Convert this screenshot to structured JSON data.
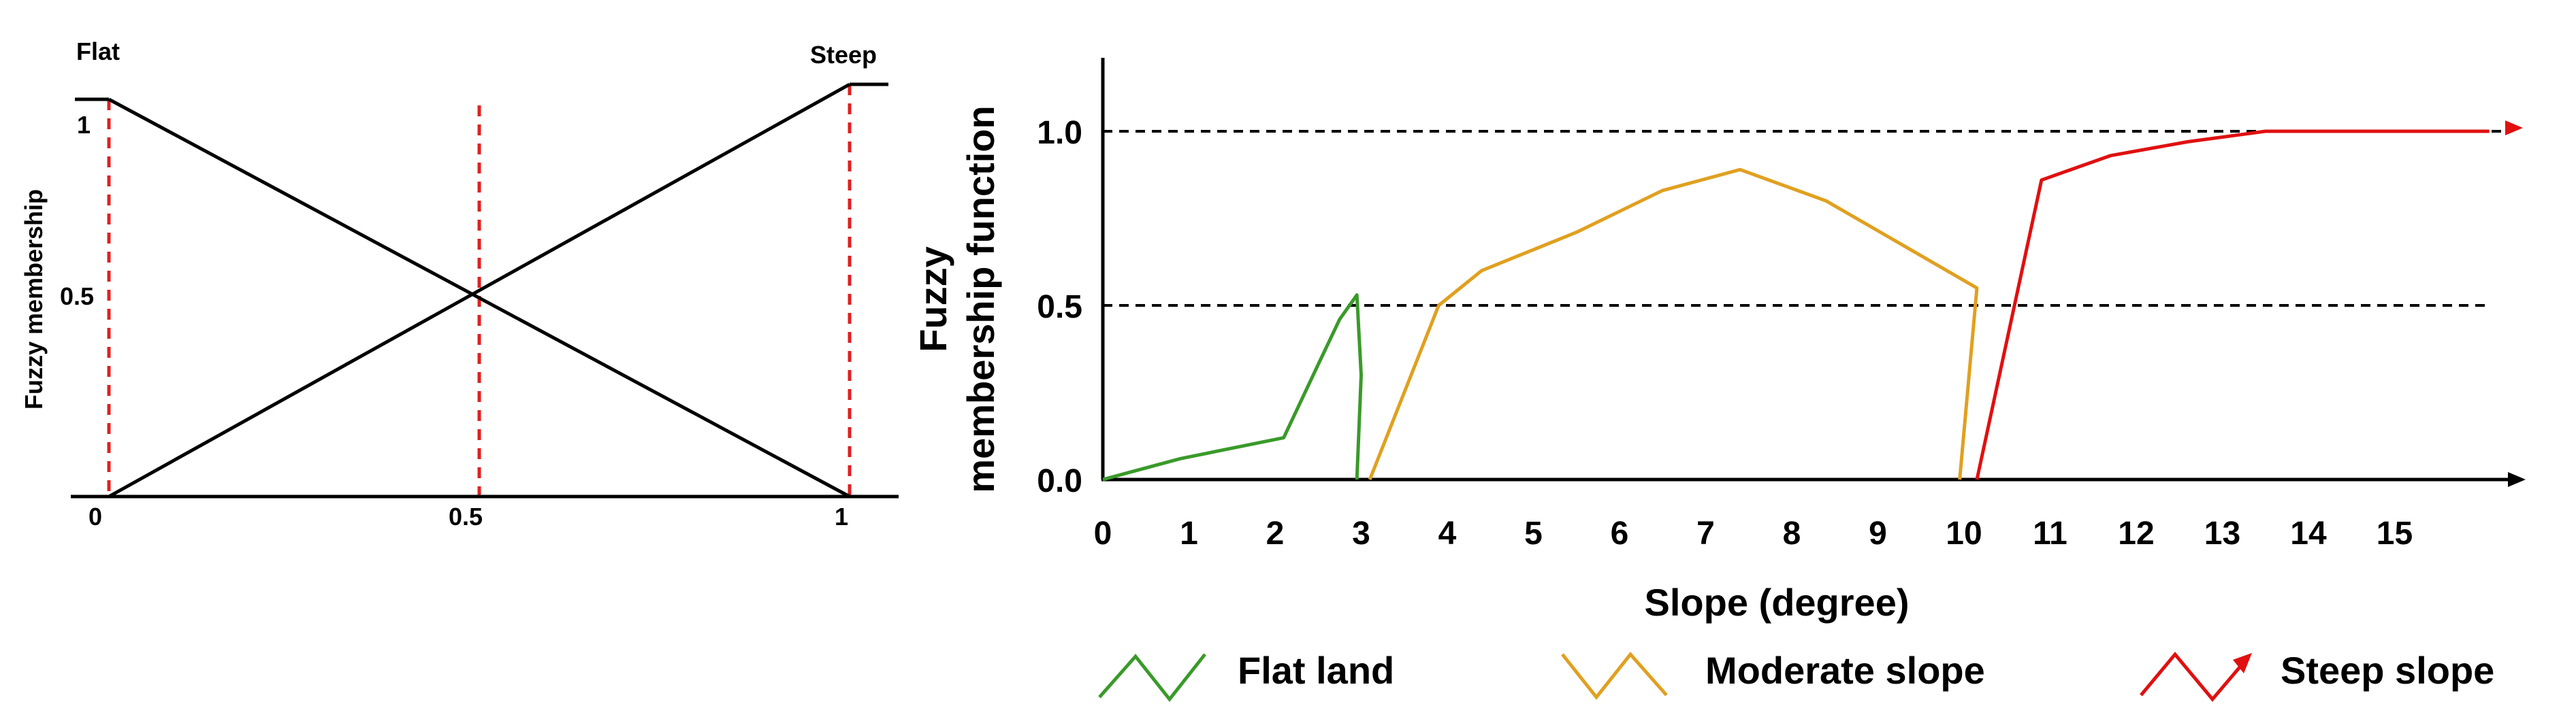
{
  "chart_data": [
    {
      "type": "line",
      "title": "",
      "ylabel": "Fuzzy membership",
      "xlim": [
        0,
        1
      ],
      "ylim": [
        0,
        1
      ],
      "x_ticks": [
        "0",
        "0.5",
        "1"
      ],
      "y_ticks": [
        "1",
        "0.5"
      ],
      "top_labels": {
        "left": "Flat",
        "right": "Steep"
      },
      "series": [
        {
          "name": "Flat",
          "color": "#000000",
          "x": [
            0,
            1
          ],
          "y": [
            1,
            0
          ]
        },
        {
          "name": "Steep",
          "color": "#000000",
          "x": [
            0,
            1
          ],
          "y": [
            0,
            1
          ]
        }
      ],
      "reference_lines": {
        "x": [
          0,
          0.5,
          1
        ],
        "color": "#e02020",
        "style": "dashed"
      },
      "grid": false
    },
    {
      "type": "line",
      "title": "",
      "xlabel": "Slope (degree)",
      "ylabel_line1": "Fuzzy",
      "ylabel_line2": "membership function",
      "xlim": [
        0,
        16.2
      ],
      "ylim": [
        0,
        1.2
      ],
      "x_ticks": [
        "0",
        "1",
        "2",
        "3",
        "4",
        "5",
        "6",
        "7",
        "8",
        "9",
        "10",
        "11",
        "12",
        "13",
        "14",
        "15"
      ],
      "y_ticks": [
        "0.0",
        "0.5",
        "1.0"
      ],
      "series": [
        {
          "name": "Flat land",
          "color": "#3a9a2a",
          "x": [
            0,
            0.9,
            2.1,
            2.5,
            2.75,
            2.95,
            3.0,
            2.95
          ],
          "y": [
            0,
            0.06,
            0.12,
            0.33,
            0.46,
            0.53,
            0.3,
            0
          ]
        },
        {
          "name": "Moderate slope",
          "color": "#e0a020",
          "x": [
            3.1,
            3.9,
            4.4,
            5.5,
            6.5,
            7.4,
            8.4,
            10.15
          ],
          "y": [
            0,
            0.5,
            0.6,
            0.71,
            0.83,
            0.89,
            0.8,
            0.55
          ]
        },
        {
          "name": "Steep slope",
          "color": "#e01010",
          "x": [
            10.15,
            10.9,
            11.7,
            12.6,
            13.5,
            14.3,
            16.1
          ],
          "y": [
            0,
            0.86,
            0.93,
            0.97,
            1.0,
            1.0,
            1.0
          ]
        }
      ],
      "reference_lines": {
        "y": [
          0.5,
          1.0
        ],
        "color": "#000000",
        "style": "dashed"
      },
      "legend_position": "bottom",
      "grid": false
    }
  ]
}
